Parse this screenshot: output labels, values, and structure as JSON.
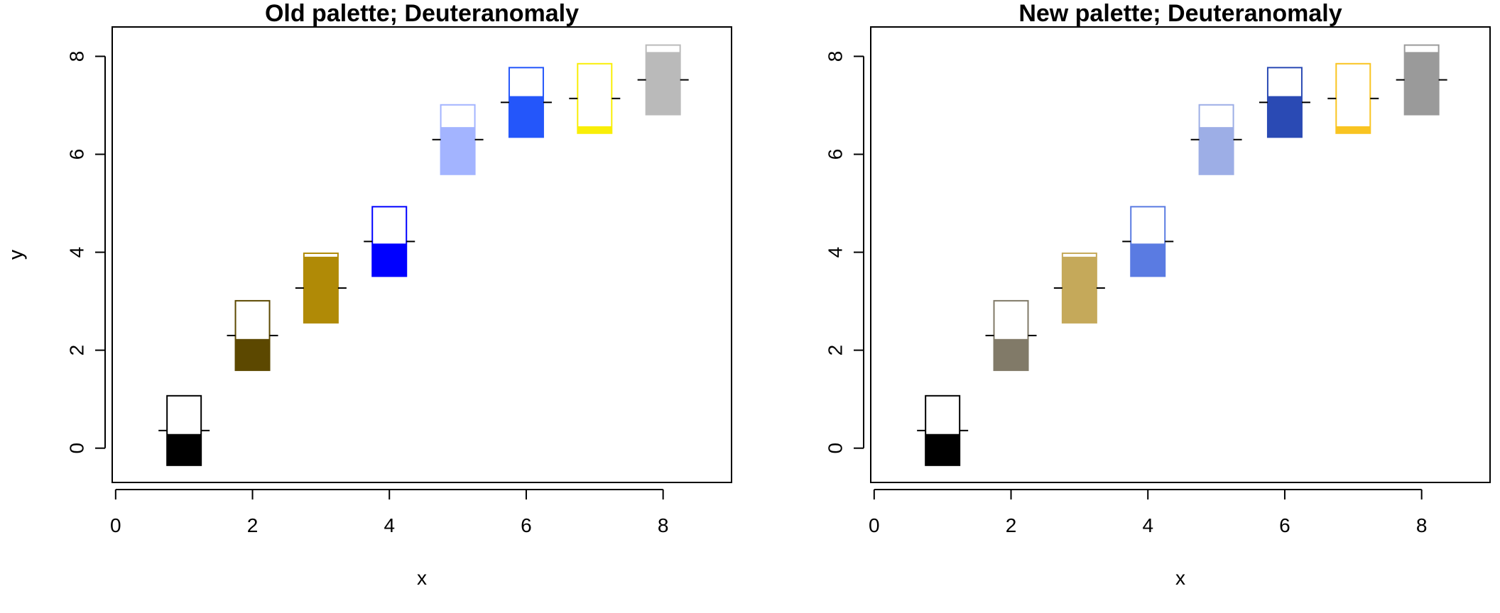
{
  "chart_data": [
    {
      "type": "scatter",
      "title": "Old palette; Deuteranomaly",
      "xlabel": "x",
      "ylabel": "y",
      "xlim": [
        -0.05,
        9.0
      ],
      "ylim": [
        -0.7,
        8.6
      ],
      "xticks": [
        0,
        2,
        4,
        6,
        8
      ],
      "yticks": [
        0,
        2,
        4,
        6,
        8
      ],
      "x_tick_labels": [
        "0",
        "2",
        "4",
        "6",
        "8"
      ],
      "y_tick_labels": [
        "0",
        "2",
        "4",
        "6",
        "8"
      ],
      "grid": false,
      "symbol": "thermometer",
      "points": [
        {
          "x": 1,
          "y": 0.36,
          "fill": 0.45,
          "color": "#000000"
        },
        {
          "x": 2,
          "y": 2.3,
          "fill": 0.45,
          "color": "#5c4800"
        },
        {
          "x": 3,
          "y": 3.27,
          "fill": 0.95,
          "color": "#b08a06"
        },
        {
          "x": 4,
          "y": 4.22,
          "fill": 0.47,
          "color": "#0000ff"
        },
        {
          "x": 5,
          "y": 6.3,
          "fill": 0.68,
          "color": "#a3b4ff"
        },
        {
          "x": 6,
          "y": 7.06,
          "fill": 0.59,
          "color": "#2456fa"
        },
        {
          "x": 7,
          "y": 7.14,
          "fill": 0.1,
          "color": "#f9ee07"
        },
        {
          "x": 8,
          "y": 7.52,
          "fill": 0.9,
          "color": "#bababa"
        }
      ]
    },
    {
      "type": "scatter",
      "title": "New palette; Deuteranomaly",
      "xlabel": "x",
      "ylabel": "y",
      "xlim": [
        -0.05,
        9.0
      ],
      "ylim": [
        -0.7,
        8.6
      ],
      "xticks": [
        0,
        2,
        4,
        6,
        8
      ],
      "yticks": [
        0,
        2,
        4,
        6,
        8
      ],
      "x_tick_labels": [
        "0",
        "2",
        "4",
        "6",
        "8"
      ],
      "y_tick_labels": [
        "0",
        "2",
        "4",
        "6",
        "8"
      ],
      "grid": false,
      "symbol": "thermometer",
      "points": [
        {
          "x": 1,
          "y": 0.36,
          "fill": 0.45,
          "color": "#000000"
        },
        {
          "x": 2,
          "y": 2.3,
          "fill": 0.45,
          "color": "#817a68"
        },
        {
          "x": 3,
          "y": 3.27,
          "fill": 0.95,
          "color": "#c5a95a"
        },
        {
          "x": 4,
          "y": 4.22,
          "fill": 0.47,
          "color": "#5a7be2"
        },
        {
          "x": 5,
          "y": 6.3,
          "fill": 0.68,
          "color": "#9daee6"
        },
        {
          "x": 6,
          "y": 7.06,
          "fill": 0.59,
          "color": "#2a4ab4"
        },
        {
          "x": 7,
          "y": 7.14,
          "fill": 0.1,
          "color": "#f9c421"
        },
        {
          "x": 8,
          "y": 7.52,
          "fill": 0.9,
          "color": "#9a9a9a"
        }
      ]
    }
  ]
}
